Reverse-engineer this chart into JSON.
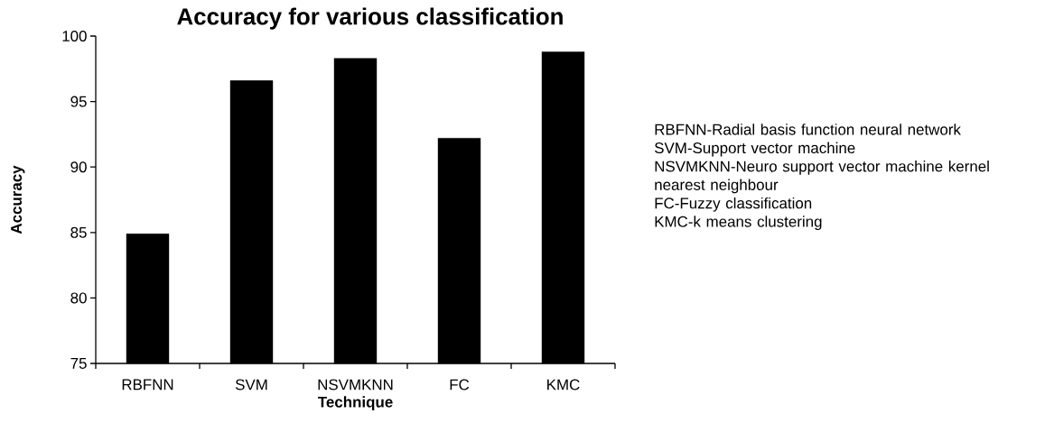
{
  "chart_data": {
    "type": "bar",
    "title": "Accuracy for various classification",
    "xlabel": "Technique",
    "ylabel": "Accuracy",
    "categories": [
      "RBFNN",
      "SVM",
      "NSVMKNN",
      "FC",
      "KMC"
    ],
    "values": [
      84.9,
      96.6,
      98.3,
      92.2,
      98.8
    ],
    "color": "#000000",
    "ylim": [
      75,
      100
    ],
    "yticks": [
      75,
      80,
      85,
      90,
      95,
      100
    ],
    "grid": false,
    "annotations": [
      "RBFNN-Radial basis function neural network",
      "SVM-Support vector machine",
      "NSVMKNN-Neuro support vector machine kernel nearest neighbour",
      "FC-Fuzzy classification",
      "KMC-k means clustering"
    ]
  }
}
